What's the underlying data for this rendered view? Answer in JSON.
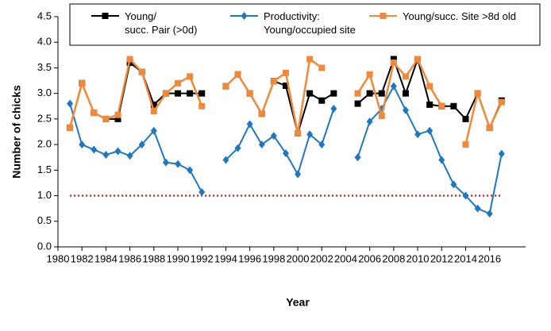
{
  "chart_data": {
    "type": "line",
    "x": [
      1981,
      1982,
      1983,
      1984,
      1985,
      1986,
      1987,
      1988,
      1989,
      1990,
      1991,
      1992,
      1993,
      1994,
      1995,
      1996,
      1997,
      1998,
      1999,
      2000,
      2001,
      2002,
      2003,
      2004,
      2005,
      2006,
      2007,
      2008,
      2009,
      2010,
      2011,
      2012,
      2013,
      2014,
      2015,
      2016,
      2017
    ],
    "series": [
      {
        "name": "Young/\nsucc. Pair (>0d)",
        "color": "#000000",
        "marker": "square",
        "values": [
          2.33,
          3.2,
          2.62,
          2.5,
          2.5,
          3.6,
          3.42,
          2.78,
          3.0,
          3.0,
          3.0,
          3.0,
          null,
          3.14,
          3.37,
          3.0,
          2.6,
          3.24,
          3.15,
          2.22,
          3.0,
          2.86,
          3.0,
          null,
          2.8,
          3.0,
          3.0,
          3.67,
          3.0,
          3.67,
          2.78,
          2.75,
          2.75,
          2.5,
          3.0,
          2.33,
          2.86
        ]
      },
      {
        "name": "Productivity:\nYoung/occupied site",
        "color": "#1f77c4",
        "marker": "diamond",
        "values": [
          2.8,
          2.0,
          1.9,
          1.8,
          1.87,
          1.78,
          2.0,
          2.27,
          1.65,
          1.62,
          1.5,
          1.07,
          null,
          1.7,
          1.93,
          2.4,
          2.0,
          2.17,
          1.83,
          1.42,
          2.2,
          2.0,
          2.7,
          null,
          1.75,
          2.45,
          2.7,
          3.14,
          2.67,
          2.2,
          2.27,
          1.7,
          1.22,
          1.0,
          0.75,
          0.65,
          1.82
        ]
      },
      {
        "name": "Young/succ. Site >8d old",
        "color": "#f0893a",
        "marker": "square",
        "values": [
          2.33,
          3.2,
          2.62,
          2.5,
          2.58,
          3.67,
          3.42,
          2.65,
          3.0,
          3.2,
          3.33,
          2.75,
          null,
          3.14,
          3.37,
          3.0,
          2.6,
          3.24,
          3.4,
          2.22,
          3.67,
          3.5,
          null,
          null,
          3.0,
          3.37,
          2.56,
          3.6,
          3.33,
          3.67,
          3.14,
          2.75,
          null,
          2.0,
          3.0,
          2.33,
          2.83
        ]
      }
    ],
    "reference_line": {
      "value": 1.0,
      "color": "#e02020"
    },
    "x_label": "Year",
    "y_label": "Number of chicks",
    "xlim": [
      1980,
      2019
    ],
    "xticks": [
      1980,
      1982,
      1984,
      1986,
      1988,
      1990,
      1992,
      1994,
      1996,
      1998,
      2000,
      2002,
      2004,
      2006,
      2008,
      2010,
      2012,
      2014,
      2016
    ],
    "ylim": [
      0,
      4.5
    ],
    "yticks": [
      {
        "value": 0,
        "label": "0.0"
      },
      {
        "value": 0.5,
        "label": "0.5"
      },
      {
        "value": 1,
        "label": "1.0"
      },
      {
        "value": 1.5,
        "label": "1.5"
      },
      {
        "value": 2,
        "label": "2.0"
      },
      {
        "value": 2.5,
        "label": "2.5"
      },
      {
        "value": 3,
        "label": "3.0"
      },
      {
        "value": 3.5,
        "label": "3.5"
      },
      {
        "value": 4,
        "label": "4.0"
      },
      {
        "value": 4.5,
        "label": "4.5"
      }
    ]
  }
}
